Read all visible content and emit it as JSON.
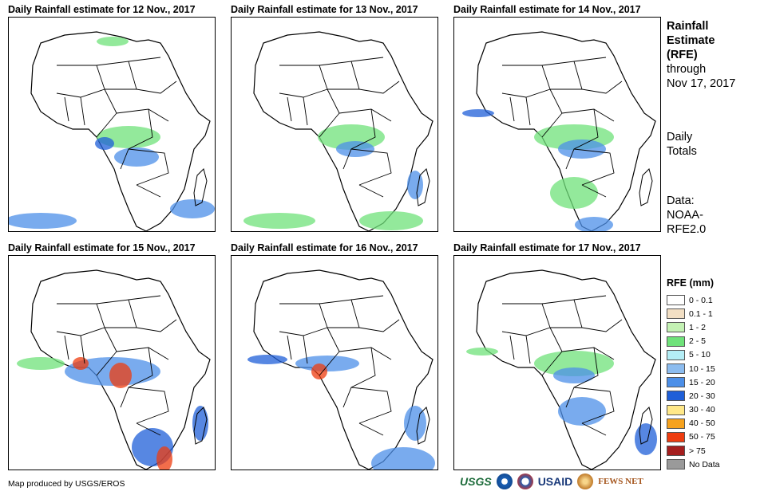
{
  "panels": [
    {
      "title": "Daily Rainfall estimate for 12 Nov., 2017"
    },
    {
      "title": "Daily Rainfall estimate for 13 Nov., 2017"
    },
    {
      "title": "Daily Rainfall estimate for 14 Nov., 2017"
    },
    {
      "title": "Daily Rainfall estimate for 15 Nov., 2017"
    },
    {
      "title": "Daily Rainfall estimate for 16 Nov., 2017"
    },
    {
      "title": "Daily Rainfall estimate for 17 Nov., 2017"
    }
  ],
  "sidebar": {
    "heading_1": "Rainfall",
    "heading_2": "Estimate",
    "heading_3": "(RFE)",
    "through": "through",
    "date": "Nov 17, 2017",
    "daily": "Daily",
    "totals": "Totals",
    "data_label": "Data:",
    "data_src_1": "NOAA-",
    "data_src_2": "RFE2.0"
  },
  "legend": {
    "title": "RFE (mm)",
    "items": [
      {
        "label": "0 - 0.1",
        "color": "#ffffff"
      },
      {
        "label": "0.1 - 1",
        "color": "#f2dfc4"
      },
      {
        "label": "1 - 2",
        "color": "#c4f2b4"
      },
      {
        "label": "2 - 5",
        "color": "#6fe27a"
      },
      {
        "label": "5 - 10",
        "color": "#b4eef6"
      },
      {
        "label": "10 - 15",
        "color": "#8cbcef"
      },
      {
        "label": "15 - 20",
        "color": "#4c8fe8"
      },
      {
        "label": "20 - 30",
        "color": "#1f5fd8"
      },
      {
        "label": "30 - 40",
        "color": "#ffe888"
      },
      {
        "label": "40 - 50",
        "color": "#f6a21e"
      },
      {
        "label": "50 - 75",
        "color": "#ee3c0f"
      },
      {
        "label": "> 75",
        "color": "#a51e1e"
      },
      {
        "label": "No Data",
        "color": "#9a9a9a"
      }
    ]
  },
  "footer": {
    "credit": "Map produced by USGS/EROS",
    "logo_usgs": "USGS",
    "logo_usaid": "USAID",
    "logo_fews": "FEWS NET"
  }
}
